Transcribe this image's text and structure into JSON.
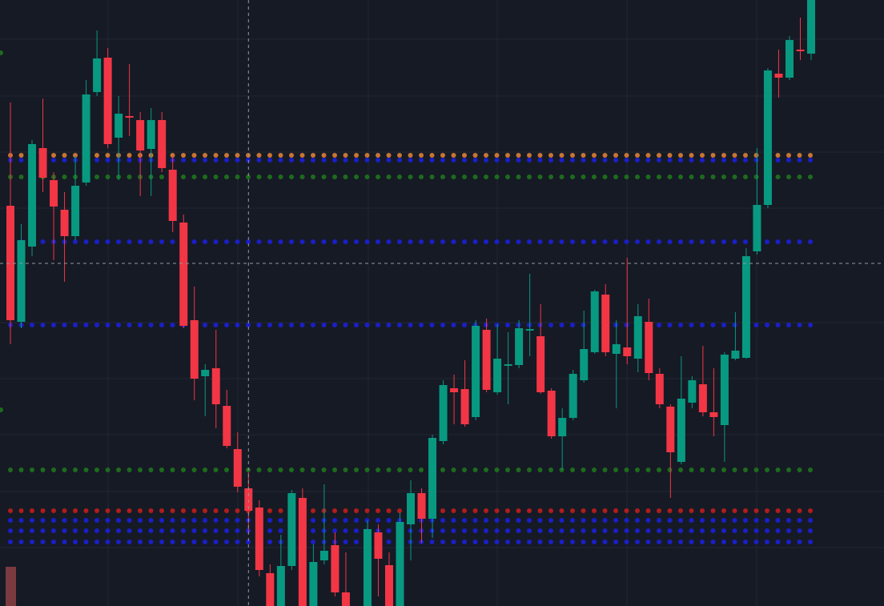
{
  "chart_data": {
    "type": "candlestick",
    "ylim": [
      0,
      757
    ],
    "up_color": "#089981",
    "down_color": "#f23645",
    "open": [
      500,
      355,
      449,
      572,
      532,
      495,
      462,
      529,
      642,
      685,
      585,
      612,
      607,
      571,
      607,
      545,
      479,
      357,
      287,
      297,
      250,
      196,
      147,
      123,
      41,
      0,
      50,
      135,
      0,
      57,
      76,
      17,
      null,
      0,
      92,
      51,
      0,
      102,
      141,
      109,
      206,
      272,
      271,
      236,
      345,
      267,
      301,
      301,
      345,
      337,
      269,
      212,
      235,
      282,
      317,
      389,
      315,
      323,
      309,
      355,
      290,
      249,
      180,
      254,
      277,
      242,
      226,
      309,
      310,
      443,
      501,
      665,
      660,
      695,
      690
    ],
    "high": [
      629,
      477,
      582,
      634,
      542,
      517,
      562,
      657,
      719,
      697,
      637,
      677,
      617,
      622,
      617,
      562,
      489,
      399,
      302,
      345,
      270,
      217,
      167,
      132,
      52,
      89,
      145,
      147,
      77,
      152,
      92,
      67,
      null,
      107,
      102,
      67,
      117,
      157,
      147,
      214,
      282,
      289,
      307,
      357,
      359,
      352,
      342,
      357,
      415,
      377,
      272,
      247,
      295,
      369,
      395,
      402,
      357,
      435,
      377,
      384,
      297,
      252,
      312,
      287,
      325,
      297,
      317,
      367,
      447,
      572,
      672,
      695,
      712,
      735,
      757
    ],
    "low": [
      327,
      347,
      437,
      517,
      432,
      405,
      457,
      525,
      637,
      572,
      532,
      587,
      512,
      512,
      542,
      467,
      347,
      257,
      237,
      222,
      197,
      142,
      92,
      37,
      0,
      0,
      45,
      0,
      0,
      52,
      12,
      0,
      null,
      0,
      12,
      0,
      0,
      57,
      79,
      85,
      202,
      227,
      224,
      232,
      267,
      264,
      252,
      297,
      312,
      265,
      209,
      170,
      232,
      279,
      315,
      312,
      247,
      302,
      292,
      282,
      247,
      135,
      177,
      247,
      237,
      212,
      180,
      307,
      309,
      439,
      497,
      635,
      657,
      682,
      682
    ],
    "close": [
      357,
      457,
      577,
      535,
      499,
      462,
      525,
      639,
      684,
      577,
      615,
      610,
      569,
      607,
      547,
      481,
      350,
      284,
      295,
      252,
      200,
      149,
      119,
      45,
      0,
      50,
      141,
      0,
      55,
      69,
      17,
      0,
      null,
      96,
      59,
      0,
      105,
      141,
      109,
      210,
      276,
      267,
      227,
      350,
      270,
      309,
      302,
      347,
      346,
      267,
      212,
      235,
      290,
      321,
      393,
      317,
      327,
      312,
      362,
      291,
      252,
      192,
      259,
      282,
      242,
      236,
      314,
      319,
      437,
      501,
      669,
      660,
      707,
      693,
      757
    ],
    "levels": [
      {
        "value": 563,
        "color": "#c87533"
      },
      {
        "value": 557,
        "color": "#1a1fc8"
      },
      {
        "value": 536,
        "color": "#1d6b1d"
      },
      {
        "value": 455,
        "color": "#1a1fc8"
      },
      {
        "value": 351,
        "color": "#1a1fc8"
      },
      {
        "value": 170,
        "color": "#1d6b1d"
      },
      {
        "value": 119,
        "color": "#b01c1c"
      },
      {
        "value": 107,
        "color": "#1a1fc8"
      },
      {
        "value": 94,
        "color": "#1a1fc8"
      },
      {
        "value": 80,
        "color": "#1a1fc8"
      }
    ],
    "crosshair": {
      "index": 22,
      "value": 428
    },
    "grid": true
  }
}
